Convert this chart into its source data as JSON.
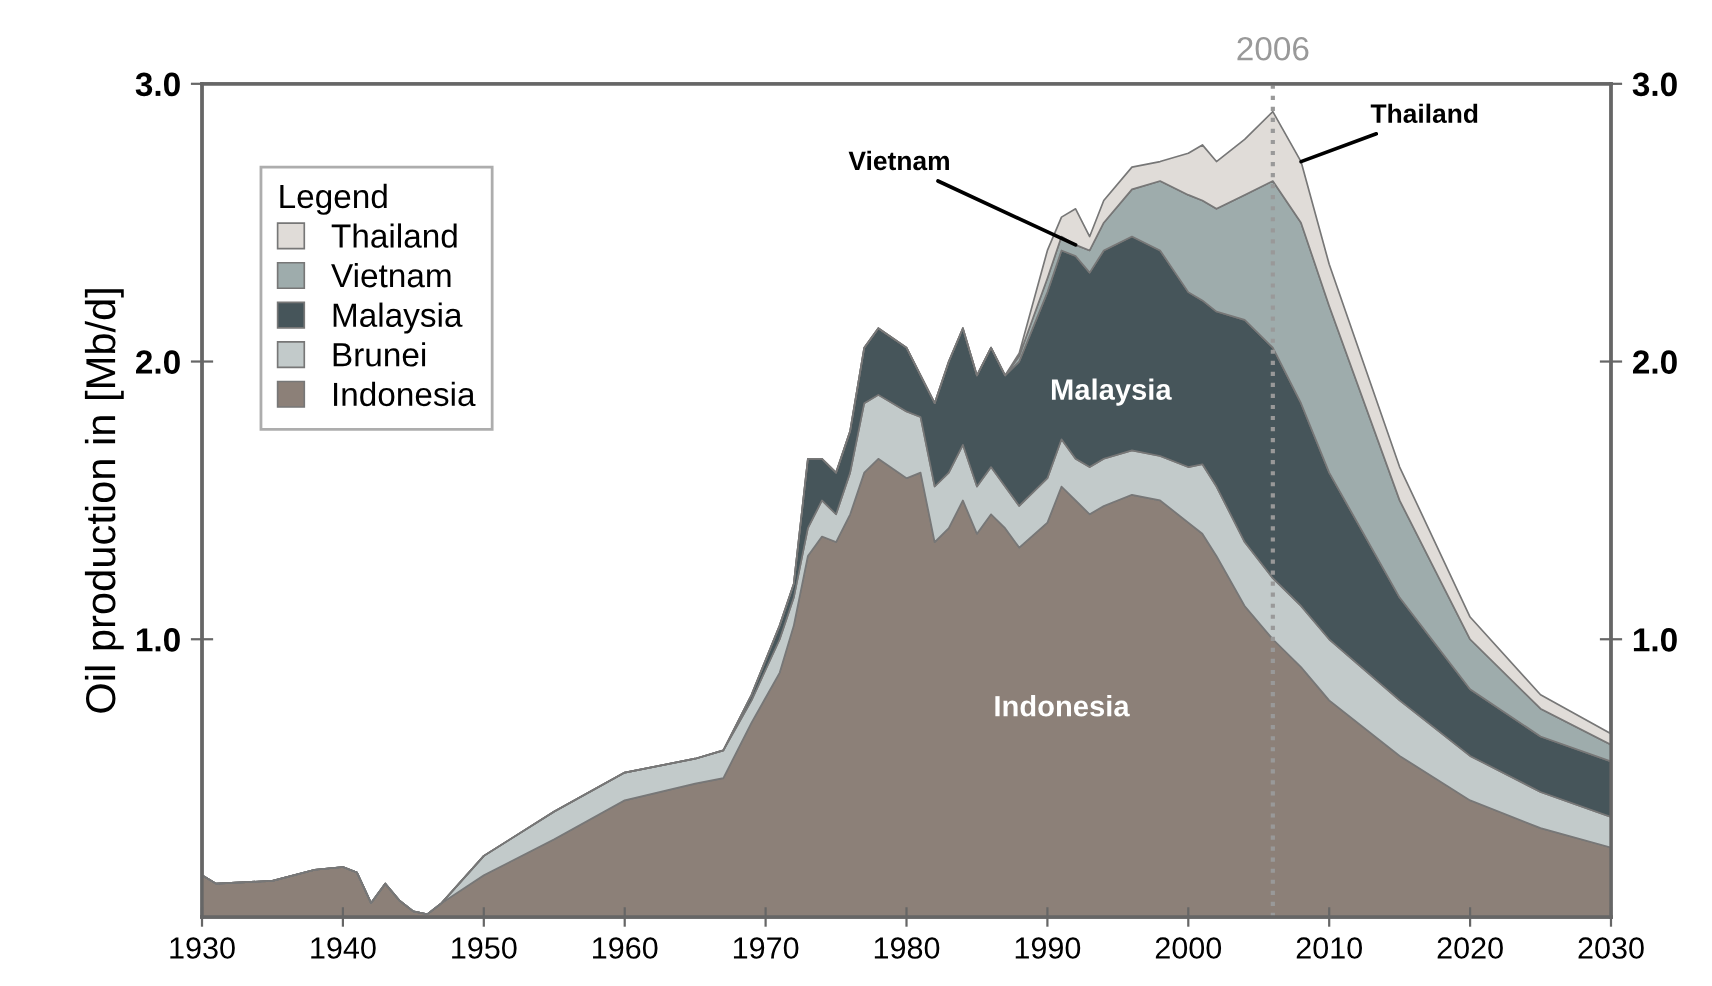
{
  "chart_data": {
    "type": "area",
    "stacked": true,
    "ylabel": "Oil production in [Mb/d]",
    "x": [
      1930,
      1931,
      1935,
      1938,
      1940,
      1941,
      1942,
      1943,
      1944,
      1945,
      1946,
      1947,
      1950,
      1955,
      1960,
      1965,
      1967,
      1969,
      1971,
      1972,
      1973,
      1974,
      1975,
      1976,
      1977,
      1978,
      1980,
      1981,
      1982,
      1983,
      1984,
      1985,
      1986,
      1987,
      1988,
      1990,
      1991,
      1992,
      1993,
      1994,
      1996,
      1998,
      2000,
      2001,
      2002,
      2004,
      2006,
      2008,
      2010,
      2015,
      2020,
      2025,
      2030
    ],
    "series": [
      {
        "name": "Indonesia",
        "color": "#8c8078",
        "values": [
          0.15,
          0.12,
          0.13,
          0.17,
          0.18,
          0.16,
          0.05,
          0.12,
          0.06,
          0.02,
          0.01,
          0.05,
          0.15,
          0.28,
          0.42,
          0.48,
          0.5,
          0.7,
          0.88,
          1.05,
          1.3,
          1.37,
          1.35,
          1.45,
          1.6,
          1.65,
          1.58,
          1.6,
          1.35,
          1.4,
          1.5,
          1.38,
          1.45,
          1.4,
          1.33,
          1.42,
          1.55,
          1.5,
          1.45,
          1.48,
          1.52,
          1.5,
          1.42,
          1.38,
          1.3,
          1.12,
          1.0,
          0.9,
          0.78,
          0.58,
          0.42,
          0.32,
          0.25
        ]
      },
      {
        "name": "Brunei",
        "color": "#c2caca",
        "values": [
          0,
          0,
          0,
          0,
          0,
          0,
          0,
          0,
          0,
          0,
          0,
          0,
          0.07,
          0.1,
          0.1,
          0.09,
          0.1,
          0.08,
          0.12,
          0.1,
          0.1,
          0.13,
          0.1,
          0.15,
          0.25,
          0.23,
          0.24,
          0.2,
          0.2,
          0.2,
          0.2,
          0.17,
          0.17,
          0.15,
          0.15,
          0.16,
          0.17,
          0.15,
          0.17,
          0.17,
          0.16,
          0.16,
          0.2,
          0.25,
          0.25,
          0.23,
          0.22,
          0.22,
          0.22,
          0.2,
          0.16,
          0.13,
          0.11
        ]
      },
      {
        "name": "Malaysia",
        "color": "#46555a",
        "values": [
          0,
          0,
          0,
          0,
          0,
          0,
          0,
          0,
          0,
          0,
          0,
          0,
          0,
          0,
          0,
          0,
          0,
          0.02,
          0.05,
          0.05,
          0.25,
          0.15,
          0.15,
          0.15,
          0.2,
          0.24,
          0.23,
          0.15,
          0.3,
          0.4,
          0.42,
          0.4,
          0.43,
          0.4,
          0.52,
          0.67,
          0.68,
          0.73,
          0.7,
          0.75,
          0.77,
          0.74,
          0.63,
          0.59,
          0.63,
          0.8,
          0.83,
          0.73,
          0.6,
          0.37,
          0.24,
          0.2,
          0.2
        ]
      },
      {
        "name": "Vietnam",
        "color": "#9eacac",
        "values": [
          0,
          0,
          0,
          0,
          0,
          0,
          0,
          0,
          0,
          0,
          0,
          0,
          0,
          0,
          0,
          0,
          0,
          0,
          0,
          0,
          0,
          0,
          0,
          0,
          0,
          0,
          0,
          0,
          0,
          0,
          0,
          0,
          0,
          0,
          0.02,
          0.05,
          0.05,
          0.04,
          0.08,
          0.1,
          0.17,
          0.25,
          0.35,
          0.36,
          0.37,
          0.45,
          0.6,
          0.65,
          0.6,
          0.35,
          0.18,
          0.1,
          0.06
        ]
      },
      {
        "name": "Thailand",
        "color": "#e0dcd8",
        "values": [
          0,
          0,
          0,
          0,
          0,
          0,
          0,
          0,
          0,
          0,
          0,
          0,
          0,
          0,
          0,
          0,
          0,
          0,
          0,
          0,
          0,
          0,
          0,
          0,
          0,
          0,
          0,
          0,
          0,
          0,
          0,
          0,
          0,
          0,
          0.01,
          0.1,
          0.07,
          0.13,
          0.05,
          0.08,
          0.08,
          0.07,
          0.15,
          0.2,
          0.17,
          0.2,
          0.25,
          0.22,
          0.15,
          0.12,
          0.08,
          0.05,
          0.04
        ]
      }
    ],
    "xlim": [
      1930,
      2030
    ],
    "xticks": [
      1930,
      1940,
      1950,
      1960,
      1970,
      1980,
      1990,
      2000,
      2010,
      2020,
      2030
    ],
    "ylim": [
      0,
      3
    ],
    "yticks": [
      {
        "value": 1,
        "label": "1.0"
      },
      {
        "value": 2,
        "label": "2.0"
      },
      {
        "value": 3,
        "label": "3.0"
      }
    ],
    "y2lim": [
      0,
      3
    ],
    "y2ticks": [
      {
        "value": 1,
        "label": "1.0"
      },
      {
        "value": 2,
        "label": "2.0"
      },
      {
        "value": 3,
        "label": "3.0"
      }
    ],
    "ref_lines": [
      {
        "axis": "x",
        "value": 2006,
        "label": "2006",
        "color": "#999999",
        "line_style": "dotted"
      }
    ],
    "annotations": [
      {
        "text": "Vietnam",
        "x": 1992,
        "y": 2.42
      },
      {
        "text": "Thailand",
        "x": 2008,
        "y": 2.72
      },
      "Malaysia",
      "Indonesia"
    ],
    "legend": "top left",
    "legend_title": "Legend",
    "grid": false
  }
}
